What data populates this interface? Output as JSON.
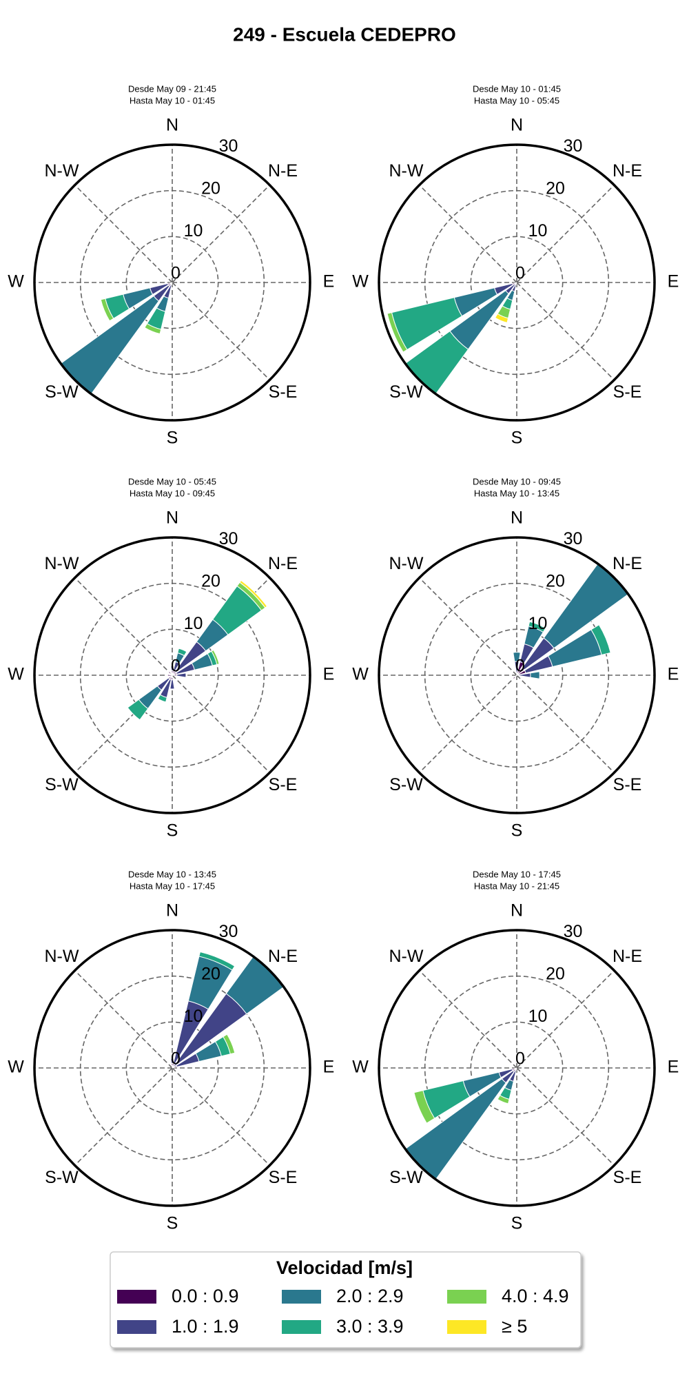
{
  "title": "249 - Escuela CEDEPRO",
  "legend_title": "Velocidad [m/s]",
  "chart_data": [
    {
      "type": "windrose",
      "subtitle": [
        "Desde May 09 - 21:45",
        "Hasta May 10 - 01:45"
      ],
      "categories": [
        "N",
        null,
        "N-E",
        null,
        "E",
        null,
        "S-E",
        null,
        "S",
        null,
        "S-W",
        null,
        "W",
        null,
        "N-W",
        null
      ],
      "rlim": [
        0,
        30
      ],
      "rticks": [
        0,
        10,
        20,
        30
      ],
      "series": [
        {
          "name": "0.0 : 0.9",
          "color": "#440154",
          "values": [
            0,
            0,
            0,
            0,
            0,
            0,
            0,
            0,
            0,
            0.5,
            1,
            1,
            0,
            0,
            0,
            0
          ]
        },
        {
          "name": "1.0 : 1.9",
          "color": "#414487",
          "values": [
            0,
            0,
            0,
            0,
            0,
            0,
            0,
            0,
            0,
            3,
            4,
            4,
            0,
            0,
            0,
            0
          ]
        },
        {
          "name": "2.0 : 2.9",
          "color": "#2a788e",
          "values": [
            0,
            0,
            0,
            0,
            0,
            0,
            0,
            0,
            0,
            3,
            25,
            6,
            0,
            0,
            0,
            0
          ]
        },
        {
          "name": "3.0 : 3.9",
          "color": "#22a884",
          "values": [
            0,
            0,
            0,
            0,
            0,
            0,
            0,
            0,
            0,
            4,
            0,
            4,
            0,
            0,
            0,
            0
          ]
        },
        {
          "name": "4.0 : 4.9",
          "color": "#7ad151",
          "values": [
            0,
            0,
            0,
            0,
            0,
            0,
            0,
            0,
            0,
            1,
            0,
            1,
            0,
            0,
            0,
            0
          ]
        },
        {
          "name": "≥ 5",
          "color": "#fde725",
          "values": [
            0,
            0,
            0,
            0,
            0,
            0,
            0,
            0,
            0,
            0,
            0,
            0,
            0,
            0,
            0,
            0
          ]
        }
      ]
    },
    {
      "type": "windrose",
      "subtitle": [
        "Desde May 10 - 01:45",
        "Hasta May 10 - 05:45"
      ],
      "categories": [
        "N",
        null,
        "N-E",
        null,
        "E",
        null,
        "S-E",
        null,
        "S",
        null,
        "S-W",
        null,
        "W",
        null,
        "N-W",
        null
      ],
      "rlim": [
        0,
        30
      ],
      "rticks": [
        0,
        10,
        20,
        30
      ],
      "series": [
        {
          "name": "0.0 : 0.9",
          "color": "#440154",
          "values": [
            0,
            0,
            0,
            0,
            0,
            0,
            0,
            0,
            0,
            0,
            0,
            1,
            0,
            0,
            0,
            0
          ]
        },
        {
          "name": "1.0 : 1.9",
          "color": "#414487",
          "values": [
            0,
            0,
            0,
            0,
            0,
            0,
            0,
            0,
            0,
            2,
            3,
            4,
            0,
            0,
            0,
            0
          ]
        },
        {
          "name": "2.0 : 2.9",
          "color": "#2a788e",
          "values": [
            0,
            0,
            0,
            0,
            0,
            0,
            0,
            0,
            0,
            2,
            15,
            9,
            0,
            0,
            0,
            0
          ]
        },
        {
          "name": "3.0 : 3.9",
          "color": "#22a884",
          "values": [
            0,
            0,
            0,
            0,
            0,
            0,
            0,
            0,
            0,
            2,
            12,
            14,
            0,
            0,
            0,
            0
          ]
        },
        {
          "name": "4.0 : 4.9",
          "color": "#7ad151",
          "values": [
            0,
            0,
            0,
            0,
            0,
            0,
            0,
            0,
            0,
            2,
            0,
            1,
            0,
            0,
            0,
            0
          ]
        },
        {
          "name": "≥ 5",
          "color": "#fde725",
          "values": [
            0,
            0,
            0,
            0,
            0,
            0,
            0,
            0,
            0,
            1,
            0,
            0,
            0,
            0,
            0,
            0
          ]
        }
      ]
    },
    {
      "type": "windrose",
      "subtitle": [
        "Desde May 10 - 05:45",
        "Hasta May 10 - 09:45"
      ],
      "categories": [
        "N",
        null,
        "N-E",
        null,
        "E",
        null,
        "S-E",
        null,
        "S",
        null,
        "S-W",
        null,
        "W",
        null,
        "N-W",
        null
      ],
      "rlim": [
        0,
        30
      ],
      "rticks": [
        0,
        10,
        20,
        30
      ],
      "series": [
        {
          "name": "0.0 : 0.9",
          "color": "#440154",
          "values": [
            1,
            1,
            1,
            1,
            1,
            0,
            0,
            0,
            1,
            1,
            1,
            0,
            1,
            0,
            1,
            0
          ]
        },
        {
          "name": "1.0 : 1.9",
          "color": "#414487",
          "values": [
            1,
            2,
            8,
            4,
            2,
            0,
            0,
            0,
            2,
            4,
            3,
            0,
            0,
            0,
            0,
            0
          ]
        },
        {
          "name": "2.0 : 2.9",
          "color": "#2a788e",
          "values": [
            0,
            2,
            6,
            4,
            0,
            0,
            0,
            0,
            0,
            0,
            5,
            0,
            0,
            0,
            0,
            0
          ]
        },
        {
          "name": "3.0 : 3.9",
          "color": "#22a884",
          "values": [
            0,
            1,
            9,
            1,
            0,
            0,
            0,
            0,
            0,
            1,
            3,
            0,
            0,
            0,
            0,
            0
          ]
        },
        {
          "name": "4.0 : 4.9",
          "color": "#7ad151",
          "values": [
            0,
            0,
            1,
            0.5,
            0,
            0,
            0,
            0,
            0,
            0,
            0,
            0,
            0,
            0,
            0,
            0
          ]
        },
        {
          "name": "≥ 5",
          "color": "#fde725",
          "values": [
            0,
            0,
            0.5,
            0,
            0,
            0,
            0,
            0,
            0,
            0,
            0,
            0,
            0,
            0,
            0,
            0
          ]
        }
      ]
    },
    {
      "type": "windrose",
      "subtitle": [
        "Desde May 10 - 09:45",
        "Hasta May 10 - 13:45"
      ],
      "categories": [
        "N",
        null,
        "N-E",
        null,
        "E",
        null,
        "S-E",
        null,
        "S",
        null,
        "S-W",
        null,
        "W",
        null,
        "N-W",
        null
      ],
      "rlim": [
        0,
        30
      ],
      "rticks": [
        0,
        10,
        20,
        30
      ],
      "series": [
        {
          "name": "0.0 : 0.9",
          "color": "#440154",
          "values": [
            0,
            3,
            2,
            2,
            0,
            0,
            0,
            0,
            0,
            0,
            1,
            0,
            0,
            0,
            0,
            0
          ]
        },
        {
          "name": "1.0 : 1.9",
          "color": "#414487",
          "values": [
            3,
            4,
            8,
            6,
            3,
            0,
            0,
            0,
            0,
            0,
            0,
            0,
            0,
            0,
            0,
            0
          ]
        },
        {
          "name": "2.0 : 2.9",
          "color": "#2a788e",
          "values": [
            2,
            4,
            20,
            11,
            2,
            0,
            0,
            0,
            0,
            0,
            0,
            0,
            0,
            0,
            0,
            0
          ]
        },
        {
          "name": "3.0 : 3.9",
          "color": "#22a884",
          "values": [
            0,
            1,
            0,
            2,
            0,
            0,
            0,
            0,
            0,
            0,
            0,
            0,
            0,
            0,
            0,
            0
          ]
        },
        {
          "name": "4.0 : 4.9",
          "color": "#7ad151",
          "values": [
            0,
            0,
            0,
            0,
            0,
            0,
            0,
            0,
            0,
            0,
            0,
            0,
            0,
            0,
            0,
            0
          ]
        },
        {
          "name": "≥ 5",
          "color": "#fde725",
          "values": [
            0,
            0,
            0,
            0,
            0,
            0,
            0,
            0,
            0,
            0,
            0,
            0,
            0,
            0,
            0,
            0
          ]
        }
      ]
    },
    {
      "type": "windrose",
      "subtitle": [
        "Desde May 10 - 13:45",
        "Hasta May 10 - 17:45"
      ],
      "categories": [
        "N",
        null,
        "N-E",
        null,
        "E",
        null,
        "S-E",
        null,
        "S",
        null,
        "S-W",
        null,
        "W",
        null,
        "N-W",
        null
      ],
      "rlim": [
        0,
        30
      ],
      "rticks": [
        0,
        10,
        20,
        30
      ],
      "series": [
        {
          "name": "0.0 : 0.9",
          "color": "#440154",
          "values": [
            1,
            1,
            0,
            1,
            0,
            0,
            0,
            0,
            0,
            0,
            0,
            0,
            0,
            0,
            0,
            0
          ]
        },
        {
          "name": "1.0 : 1.9",
          "color": "#414487",
          "values": [
            1,
            14,
            20,
            5,
            0,
            0,
            0,
            0,
            0,
            0,
            0,
            0,
            0,
            0,
            0,
            0
          ]
        },
        {
          "name": "2.0 : 2.9",
          "color": "#2a788e",
          "values": [
            0,
            10,
            10,
            5,
            0,
            0,
            0,
            0,
            0,
            0,
            0,
            0,
            0,
            0,
            0,
            0
          ]
        },
        {
          "name": "3.0 : 3.9",
          "color": "#22a884",
          "values": [
            0,
            1,
            0,
            2,
            0,
            0,
            0,
            0,
            0,
            0,
            0,
            0,
            0,
            0,
            0,
            0
          ]
        },
        {
          "name": "4.0 : 4.9",
          "color": "#7ad151",
          "values": [
            0,
            0,
            0,
            1,
            0,
            0,
            0,
            0,
            0,
            0,
            0,
            0,
            0,
            0,
            0,
            0
          ]
        },
        {
          "name": "≥ 5",
          "color": "#fde725",
          "values": [
            0,
            0,
            0,
            0,
            0,
            0,
            0,
            0,
            0,
            0,
            0,
            0,
            0,
            0,
            0,
            0
          ]
        }
      ]
    },
    {
      "type": "windrose",
      "subtitle": [
        "Desde May 10 - 17:45",
        "Hasta May 10 - 21:45"
      ],
      "categories": [
        "N",
        null,
        "N-E",
        null,
        "E",
        null,
        "S-E",
        null,
        "S",
        null,
        "S-W",
        null,
        "W",
        null,
        "N-W",
        null
      ],
      "rlim": [
        0,
        30
      ],
      "rticks": [
        0,
        10,
        20,
        30
      ],
      "series": [
        {
          "name": "0.0 : 0.9",
          "color": "#440154",
          "values": [
            0,
            0,
            0,
            0,
            0,
            0,
            0,
            0,
            0,
            0,
            1,
            1,
            0,
            0,
            0,
            0
          ]
        },
        {
          "name": "1.0 : 1.9",
          "color": "#414487",
          "values": [
            0,
            0,
            0,
            0,
            0,
            0,
            0,
            0,
            0,
            3,
            3,
            3,
            0,
            0,
            0,
            0
          ]
        },
        {
          "name": "2.0 : 2.9",
          "color": "#2a788e",
          "values": [
            0,
            0,
            0,
            0,
            0,
            0,
            0,
            0,
            0,
            2,
            26,
            8,
            0,
            0,
            0,
            0
          ]
        },
        {
          "name": "3.0 : 3.9",
          "color": "#22a884",
          "values": [
            0,
            0,
            0,
            0,
            0,
            0,
            0,
            0,
            0,
            2,
            0,
            9,
            0,
            0,
            0,
            0
          ]
        },
        {
          "name": "4.0 : 4.9",
          "color": "#7ad151",
          "values": [
            0,
            0,
            0,
            0,
            0,
            0,
            0,
            0,
            0,
            1,
            0,
            2,
            0,
            0,
            0,
            0
          ]
        },
        {
          "name": "≥ 5",
          "color": "#fde725",
          "values": [
            0,
            0,
            0,
            0,
            0,
            0,
            0,
            0,
            0,
            0,
            0,
            0,
            0,
            0,
            0,
            0
          ]
        }
      ]
    }
  ]
}
